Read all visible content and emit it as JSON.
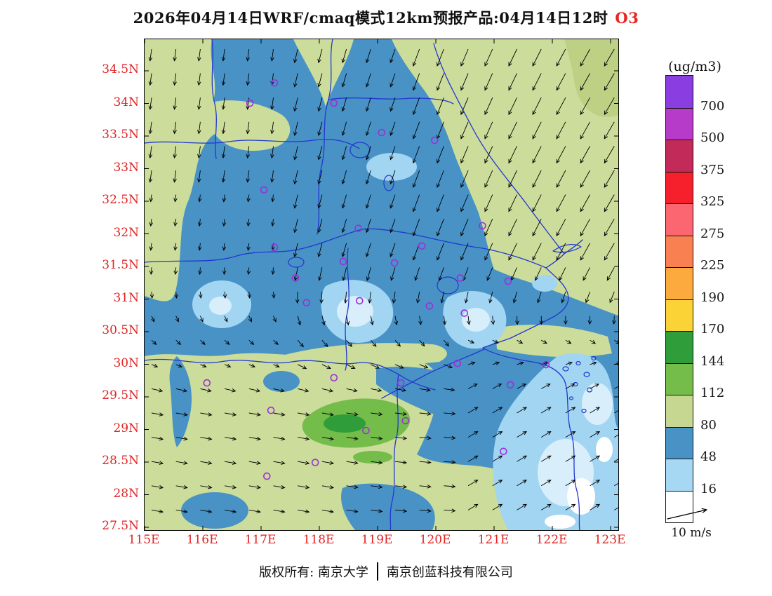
{
  "title": {
    "main": "2026年04月14日WRF/cmaq模式12km预报产品:04月14日12时",
    "pollutant": "O3"
  },
  "colorbar": {
    "unit_label": "(ug/m3)",
    "boundaries": [
      700,
      500,
      375,
      325,
      275,
      225,
      190,
      170,
      144,
      112,
      80,
      48,
      16
    ],
    "colors_top_to_bottom": [
      "#8a3de0",
      "#b63bc9",
      "#c22a5a",
      "#f5202c",
      "#fb6671",
      "#f98050",
      "#fcaa3e",
      "#fbd336",
      "#2f9e3a",
      "#74bd4b",
      "#c6d792",
      "#4892c6",
      "#a6d7f3",
      "#ffffff"
    ]
  },
  "axes": {
    "lat_labels": [
      "34.5N",
      "34N",
      "33.5N",
      "33N",
      "32.5N",
      "32N",
      "31.5N",
      "31N",
      "30.5N",
      "30N",
      "29.5N",
      "29N",
      "28.5N",
      "28N",
      "27.5N"
    ],
    "lon_labels": [
      "115E",
      "116E",
      "117E",
      "118E",
      "119E",
      "120E",
      "121E",
      "122E",
      "123E"
    ],
    "label_color": "#e32222"
  },
  "wind_legend": {
    "label": "10 m/s"
  },
  "footer": {
    "left": "版权所有: 南京大学",
    "right": "南京创蓝科技有限公司"
  },
  "chart_data": {
    "type": "heatmap",
    "model": "WRF/cmaq 12km forecast product",
    "run_date": "2026年04月14日",
    "valid_time": "04月14日12时",
    "pollutant": "O3",
    "unit": "ug/m3",
    "x_range_lon_e": [
      115,
      123.1
    ],
    "y_range_lat_n": [
      27.5,
      35.0
    ],
    "contour_levels": [
      16,
      48,
      80,
      112,
      144,
      170,
      190,
      225,
      275,
      325,
      375,
      500,
      700
    ],
    "level_colors_low_to_high": [
      "#ffffff",
      "#a6d7f3",
      "#4892c6",
      "#c6d792",
      "#74bd4b",
      "#2f9e3a",
      "#fbd336",
      "#fcaa3e",
      "#f98050",
      "#fb6671",
      "#f5202c",
      "#c22a5a",
      "#b63bc9",
      "#8a3de0"
    ],
    "field_summary": [
      "48-80 ug/m3 (steel blue) covers most of the central domain (Anhui / Jiangsu / northern Zhejiang)",
      "80-112 ug/m3 (pale yellow-green) over the northwest corner, the northeast and eastern sea area, and a southern band near 28-29.5N",
      "112-170 ug/m3 (green with dark-green core) patch near 118-119.5E, 28.7-29.4N",
      "16-48 ug/m3 (light blue) pockets inland and over the southeast coastal sea, with <16 ug/m3 (white) spots in the far southeast",
      "wind vectors: northerly/northeasterly flow (arrows pointing SSW) over the northern half, turning easterly south of about 29.5N, north-easterly over the southeast sea; reference arrow = 10 m/s"
    ],
    "station_markers_lon_lat": [
      [
        117.23,
        34.31
      ],
      [
        116.81,
        34.0
      ],
      [
        118.25,
        34.0
      ],
      [
        119.07,
        33.55
      ],
      [
        119.98,
        33.43
      ],
      [
        117.05,
        32.67
      ],
      [
        118.67,
        32.08
      ],
      [
        119.76,
        31.81
      ],
      [
        120.8,
        32.12
      ],
      [
        117.23,
        31.79
      ],
      [
        117.59,
        31.32
      ],
      [
        118.41,
        31.57
      ],
      [
        119.29,
        31.55
      ],
      [
        120.42,
        31.32
      ],
      [
        121.24,
        31.27
      ],
      [
        117.78,
        30.94
      ],
      [
        118.69,
        30.97
      ],
      [
        119.89,
        30.89
      ],
      [
        120.49,
        30.78
      ],
      [
        116.07,
        29.71
      ],
      [
        118.25,
        29.79
      ],
      [
        119.4,
        29.71
      ],
      [
        120.37,
        30.01
      ],
      [
        121.89,
        29.99
      ],
      [
        121.28,
        29.68
      ],
      [
        117.17,
        29.29
      ],
      [
        119.48,
        29.13
      ],
      [
        118.8,
        28.98
      ],
      [
        121.16,
        28.66
      ],
      [
        117.93,
        28.49
      ],
      [
        117.1,
        28.28
      ]
    ],
    "style_colors": {
      "boundary_lines": "#2238cf",
      "station_marker": "#9b30d8",
      "axis_labels": "#e32222",
      "wind_arrows": "#000000"
    }
  }
}
